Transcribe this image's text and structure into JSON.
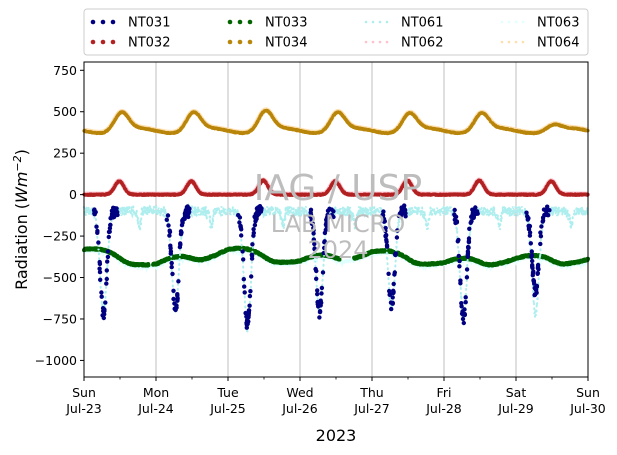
{
  "chart_data": {
    "type": "scatter",
    "title": "",
    "xlabel": "2023",
    "ylabel_prefix": "Radiation (",
    "ylabel_unit": "Wm",
    "ylabel_exp": "−2",
    "ylabel_suffix": ")",
    "ylim": [
      -1100,
      800
    ],
    "yticks": [
      -1000,
      -750,
      -500,
      -250,
      0,
      250,
      500,
      750
    ],
    "ytick_labels": [
      "−1000",
      "−750",
      "−500",
      "−250",
      "0",
      "250",
      "500",
      "750"
    ],
    "xlim_days": [
      0,
      7
    ],
    "xticks": [
      {
        "day": "Sun",
        "date": "Jul-23"
      },
      {
        "day": "Mon",
        "date": "Jul-24"
      },
      {
        "day": "Tue",
        "date": "Jul-25"
      },
      {
        "day": "Wed",
        "date": "Jul-26"
      },
      {
        "day": "Thu",
        "date": "Jul-27"
      },
      {
        "day": "Fri",
        "date": "Jul-28"
      },
      {
        "day": "Sat",
        "date": "Jul-29"
      },
      {
        "day": "Sun",
        "date": "Jul-30"
      }
    ],
    "grid": "vertical",
    "legend_position": "top",
    "watermark": [
      "IAG / USP",
      "LAB MICRO",
      "2024"
    ],
    "series": [
      {
        "name": "NT031",
        "color": "#000080",
        "style": "dots",
        "description_level": "nocturnal dip",
        "daily_min": [
          -720,
          -710,
          -790,
          -715,
          -670,
          -760,
          -590
        ],
        "base": -100
      },
      {
        "name": "NT032",
        "color": "#b22222",
        "style": "dots",
        "base": 0,
        "daily_max": [
          80,
          80,
          85,
          80,
          85,
          85,
          80
        ]
      },
      {
        "name": "NT033",
        "color": "#006400",
        "style": "dots",
        "daily_values": [
          -330,
          -420,
          -330,
          -400,
          -345,
          -410,
          -385,
          -390
        ]
      },
      {
        "name": "NT034",
        "color": "#b8860b",
        "style": "dots",
        "base": 385,
        "daily_max": [
          495,
          495,
          505,
          495,
          490,
          490,
          420
        ]
      },
      {
        "name": "NT061",
        "color": "#afeeee",
        "style": "dotted",
        "daily_min": [
          -700,
          -700,
          -800,
          -700,
          -680,
          -730,
          -720
        ]
      },
      {
        "name": "NT062",
        "color": "#ffc0cb",
        "style": "dotted",
        "base": 0
      },
      {
        "name": "NT063",
        "color": "#e0ffff",
        "style": "dotted",
        "base": -340
      },
      {
        "name": "NT064",
        "color": "#ffdead",
        "style": "dotted",
        "base": 390
      }
    ]
  }
}
